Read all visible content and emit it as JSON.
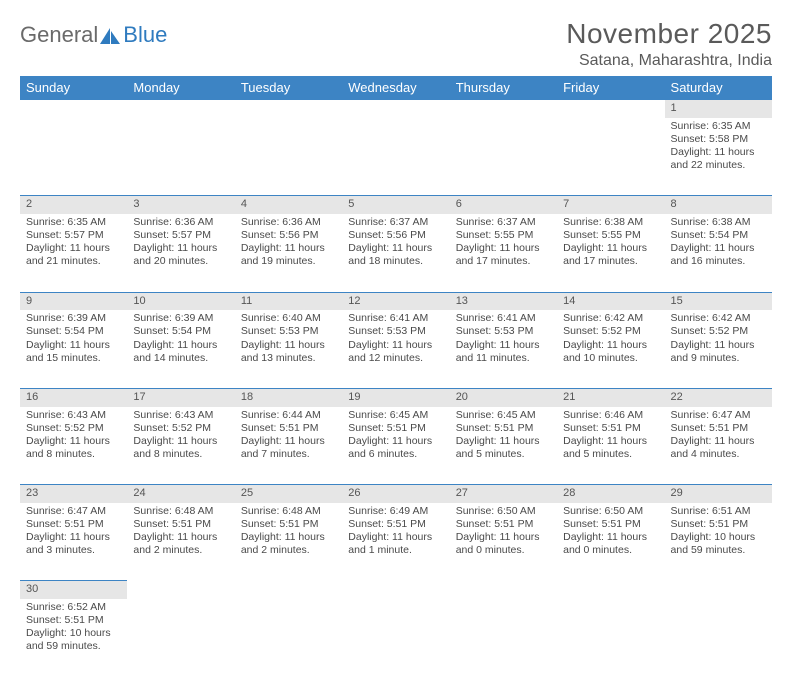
{
  "logo": {
    "text1": "General",
    "text2": "Blue"
  },
  "title": "November 2025",
  "location": "Satana, Maharashtra, India",
  "colors": {
    "header_bg": "#3d84c4",
    "header_text": "#ffffff",
    "daynum_bg": "#e6e6e6",
    "row_divider": "#3d84c4",
    "text": "#4a4a4a",
    "logo_gray": "#6a6a6a",
    "logo_blue": "#2f7bbf"
  },
  "weekdays": [
    "Sunday",
    "Monday",
    "Tuesday",
    "Wednesday",
    "Thursday",
    "Friday",
    "Saturday"
  ],
  "weeks": [
    [
      null,
      null,
      null,
      null,
      null,
      null,
      {
        "n": "1",
        "sr": "6:35 AM",
        "ss": "5:58 PM",
        "dl": "11 hours and 22 minutes."
      }
    ],
    [
      {
        "n": "2",
        "sr": "6:35 AM",
        "ss": "5:57 PM",
        "dl": "11 hours and 21 minutes."
      },
      {
        "n": "3",
        "sr": "6:36 AM",
        "ss": "5:57 PM",
        "dl": "11 hours and 20 minutes."
      },
      {
        "n": "4",
        "sr": "6:36 AM",
        "ss": "5:56 PM",
        "dl": "11 hours and 19 minutes."
      },
      {
        "n": "5",
        "sr": "6:37 AM",
        "ss": "5:56 PM",
        "dl": "11 hours and 18 minutes."
      },
      {
        "n": "6",
        "sr": "6:37 AM",
        "ss": "5:55 PM",
        "dl": "11 hours and 17 minutes."
      },
      {
        "n": "7",
        "sr": "6:38 AM",
        "ss": "5:55 PM",
        "dl": "11 hours and 17 minutes."
      },
      {
        "n": "8",
        "sr": "6:38 AM",
        "ss": "5:54 PM",
        "dl": "11 hours and 16 minutes."
      }
    ],
    [
      {
        "n": "9",
        "sr": "6:39 AM",
        "ss": "5:54 PM",
        "dl": "11 hours and 15 minutes."
      },
      {
        "n": "10",
        "sr": "6:39 AM",
        "ss": "5:54 PM",
        "dl": "11 hours and 14 minutes."
      },
      {
        "n": "11",
        "sr": "6:40 AM",
        "ss": "5:53 PM",
        "dl": "11 hours and 13 minutes."
      },
      {
        "n": "12",
        "sr": "6:41 AM",
        "ss": "5:53 PM",
        "dl": "11 hours and 12 minutes."
      },
      {
        "n": "13",
        "sr": "6:41 AM",
        "ss": "5:53 PM",
        "dl": "11 hours and 11 minutes."
      },
      {
        "n": "14",
        "sr": "6:42 AM",
        "ss": "5:52 PM",
        "dl": "11 hours and 10 minutes."
      },
      {
        "n": "15",
        "sr": "6:42 AM",
        "ss": "5:52 PM",
        "dl": "11 hours and 9 minutes."
      }
    ],
    [
      {
        "n": "16",
        "sr": "6:43 AM",
        "ss": "5:52 PM",
        "dl": "11 hours and 8 minutes."
      },
      {
        "n": "17",
        "sr": "6:43 AM",
        "ss": "5:52 PM",
        "dl": "11 hours and 8 minutes."
      },
      {
        "n": "18",
        "sr": "6:44 AM",
        "ss": "5:51 PM",
        "dl": "11 hours and 7 minutes."
      },
      {
        "n": "19",
        "sr": "6:45 AM",
        "ss": "5:51 PM",
        "dl": "11 hours and 6 minutes."
      },
      {
        "n": "20",
        "sr": "6:45 AM",
        "ss": "5:51 PM",
        "dl": "11 hours and 5 minutes."
      },
      {
        "n": "21",
        "sr": "6:46 AM",
        "ss": "5:51 PM",
        "dl": "11 hours and 5 minutes."
      },
      {
        "n": "22",
        "sr": "6:47 AM",
        "ss": "5:51 PM",
        "dl": "11 hours and 4 minutes."
      }
    ],
    [
      {
        "n": "23",
        "sr": "6:47 AM",
        "ss": "5:51 PM",
        "dl": "11 hours and 3 minutes."
      },
      {
        "n": "24",
        "sr": "6:48 AM",
        "ss": "5:51 PM",
        "dl": "11 hours and 2 minutes."
      },
      {
        "n": "25",
        "sr": "6:48 AM",
        "ss": "5:51 PM",
        "dl": "11 hours and 2 minutes."
      },
      {
        "n": "26",
        "sr": "6:49 AM",
        "ss": "5:51 PM",
        "dl": "11 hours and 1 minute."
      },
      {
        "n": "27",
        "sr": "6:50 AM",
        "ss": "5:51 PM",
        "dl": "11 hours and 0 minutes."
      },
      {
        "n": "28",
        "sr": "6:50 AM",
        "ss": "5:51 PM",
        "dl": "11 hours and 0 minutes."
      },
      {
        "n": "29",
        "sr": "6:51 AM",
        "ss": "5:51 PM",
        "dl": "10 hours and 59 minutes."
      }
    ],
    [
      {
        "n": "30",
        "sr": "6:52 AM",
        "ss": "5:51 PM",
        "dl": "10 hours and 59 minutes."
      },
      null,
      null,
      null,
      null,
      null,
      null
    ]
  ],
  "labels": {
    "sunrise": "Sunrise: ",
    "sunset": "Sunset: ",
    "daylight": "Daylight: "
  }
}
